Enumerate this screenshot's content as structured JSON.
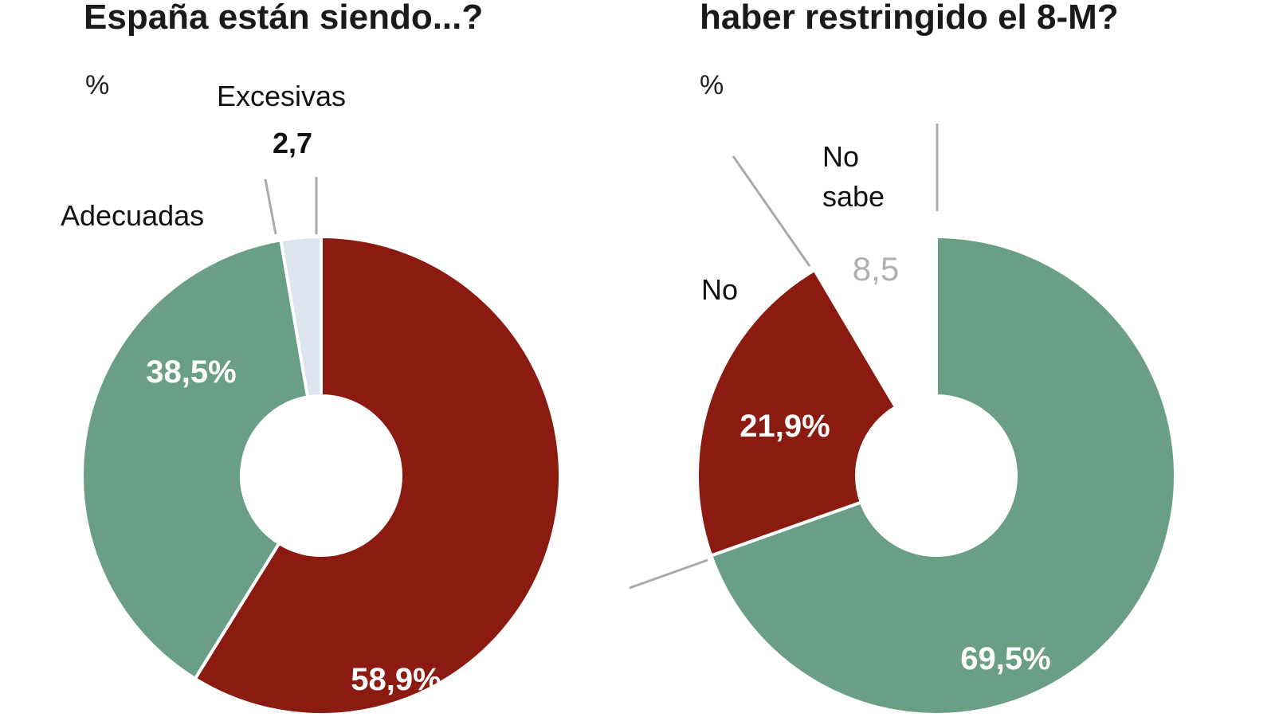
{
  "chart_data": [
    {
      "type": "pie",
      "donut": true,
      "title": "España están siendo...?",
      "unit_label": "%",
      "start": "top",
      "direction": "clockwise",
      "slices": [
        {
          "label": "",
          "value": 58.9,
          "value_label": "58,9%",
          "color": "#8b1a10"
        },
        {
          "label": "Adecuadas",
          "value": 38.5,
          "value_label": "38,5%",
          "color": "#6a9e86"
        },
        {
          "label": "Excesivas",
          "value": 2.7,
          "value_label": "2,7",
          "color": "#dce5ee"
        }
      ]
    },
    {
      "type": "pie",
      "donut": true,
      "title": "haber restringido el 8-M?",
      "unit_label": "%",
      "start": "top",
      "direction": "clockwise",
      "slices": [
        {
          "label": "",
          "value": 69.5,
          "value_label": "69,5%",
          "color": "#6a9e86"
        },
        {
          "label": "No",
          "value": 21.9,
          "value_label": "21,9%",
          "color": "#8b1a10"
        },
        {
          "label": "No sabe",
          "value": 8.5,
          "value_label": "8,5",
          "color": "#ffffff"
        }
      ]
    }
  ]
}
